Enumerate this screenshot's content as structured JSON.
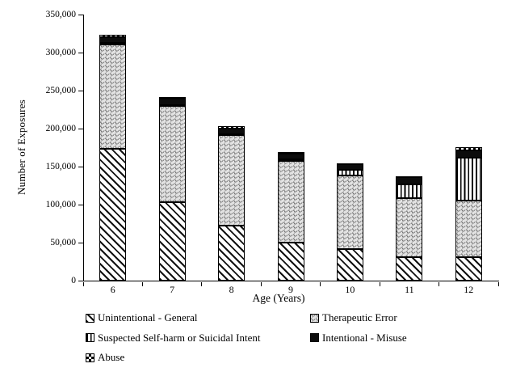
{
  "chart_data": {
    "type": "bar",
    "stacked": true,
    "title": "",
    "xlabel": "Age (Years)",
    "ylabel": "Number of Exposures",
    "ylim": [
      0,
      350000
    ],
    "grid": false,
    "legend_position": "bottom",
    "yticks": [
      0,
      50000,
      100000,
      150000,
      200000,
      250000,
      300000,
      350000
    ],
    "ytick_labels": [
      "0",
      "50,000",
      "100,000",
      "150,000",
      "200,000",
      "250,000",
      "300,000",
      "350,000"
    ],
    "categories": [
      "6",
      "7",
      "8",
      "9",
      "10",
      "11",
      "12"
    ],
    "series": [
      {
        "name": "Unintentional - General",
        "pattern": "diagonal-hatch",
        "values": [
          173000,
          103000,
          72000,
          50000,
          41500,
          31000,
          31000
        ]
      },
      {
        "name": "Therapeutic Error",
        "pattern": "wavy-gray",
        "values": [
          138000,
          126500,
          119000,
          107500,
          96500,
          77500,
          74500
        ]
      },
      {
        "name": "Suspected Self-harm or Suicidal Intent",
        "pattern": "vertical-lines",
        "values": [
          1500,
          1500,
          1800,
          2500,
          7500,
          18000,
          56000
        ]
      },
      {
        "name": "Intentional - Misuse",
        "pattern": "solid-black",
        "values": [
          8000,
          8000,
          7700,
          7000,
          7500,
          9500,
          9500
        ]
      },
      {
        "name": "Abuse",
        "pattern": "checkerboard",
        "values": [
          2500,
          2500,
          2500,
          2000,
          1300,
          1200,
          4300
        ]
      }
    ],
    "totals": [
      323000,
      241500,
      203000,
      169000,
      154300,
      137200,
      175300
    ],
    "colors": {
      "ink": "#000000",
      "therapeutic_fill": "#e2e2e2",
      "background": "#ffffff"
    }
  }
}
